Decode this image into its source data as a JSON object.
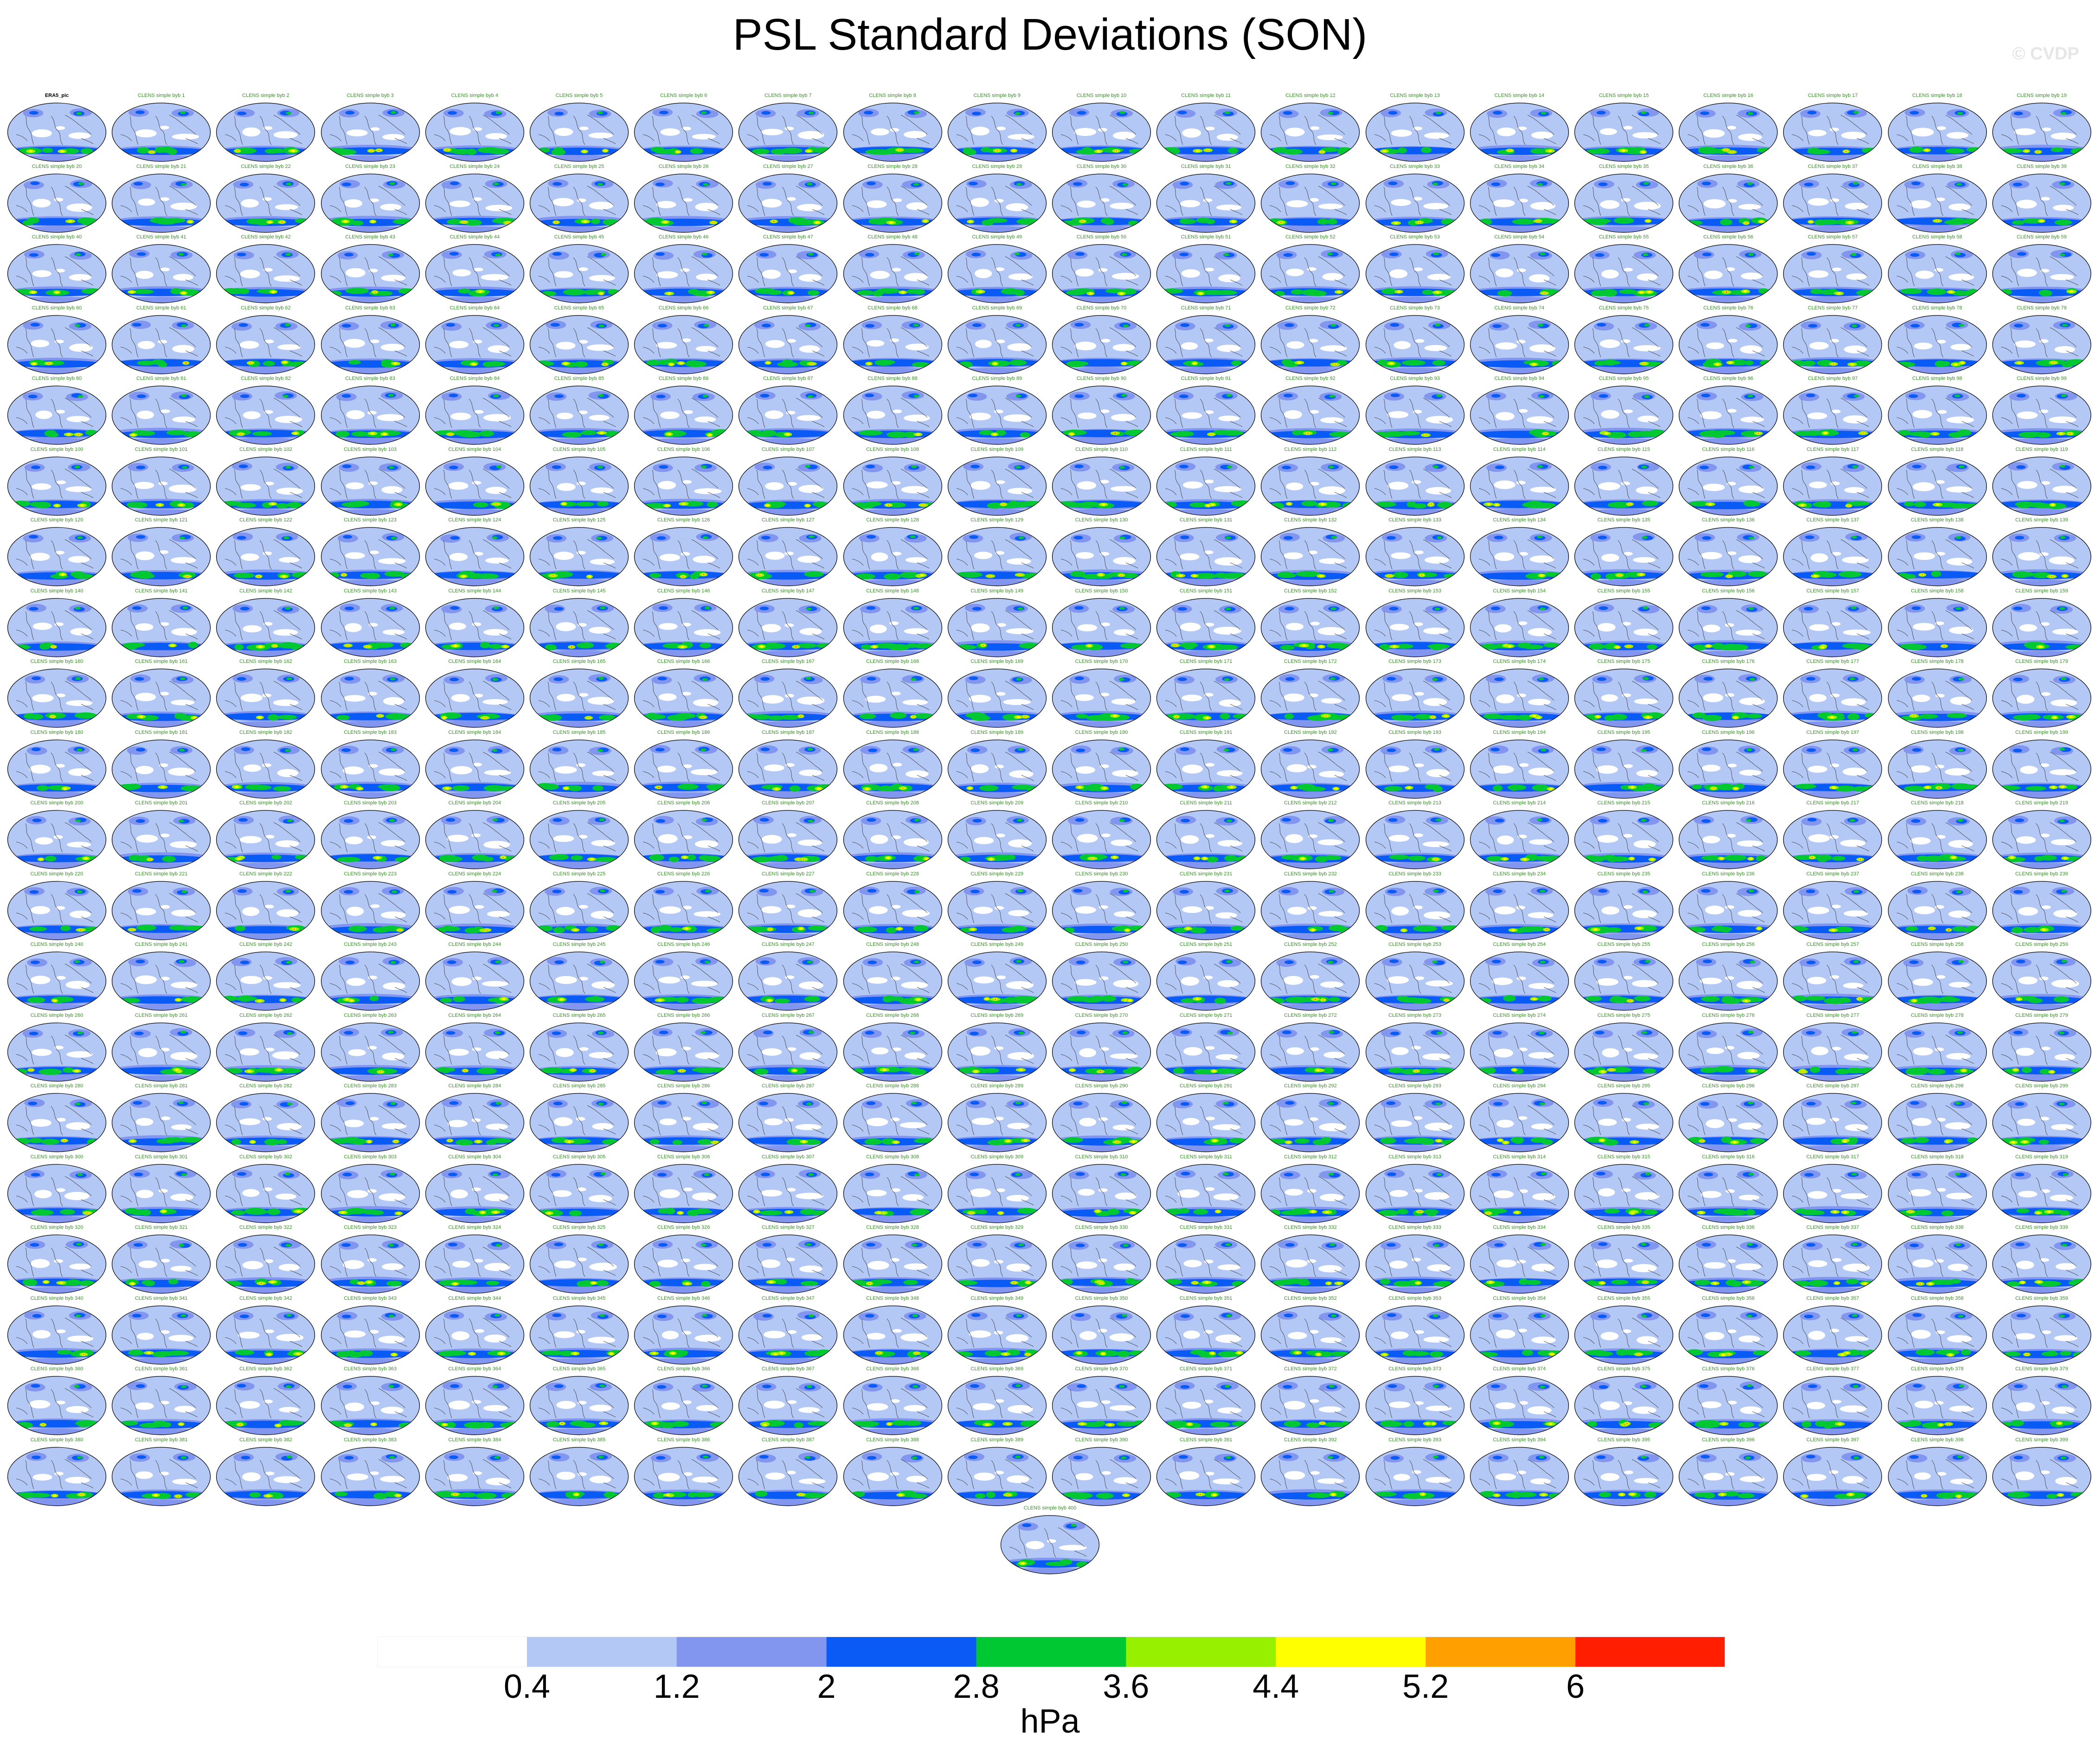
{
  "title": "PSL Standard Deviations (SON)",
  "copyright": "© CVDP",
  "chart_data": {
    "type": "heatmap",
    "title": "PSL Standard Deviations (SON)",
    "panel_count": 401,
    "panel_grid": {
      "columns": 20,
      "rows": 20,
      "extra_panels": 1
    },
    "panel_titles": [
      "ERA5_pic"
    ],
    "panel_title_pattern": "CLENS simple byb",
    "colorbar": {
      "label": "hPa",
      "levels": [
        0.4,
        1.2,
        2,
        2.8,
        3.6,
        4.4,
        5.2,
        6
      ],
      "tick_labels": [
        "0.4",
        "1.2",
        "2",
        "2.8",
        "3.6",
        "4.4",
        "5.2",
        "6"
      ],
      "colors": [
        "#ffffff",
        "#b4c8f5",
        "#8296f0",
        "#0a5af5",
        "#00c832",
        "#96f000",
        "#ffff00",
        "#ffa000",
        "#ff1e00"
      ]
    }
  }
}
